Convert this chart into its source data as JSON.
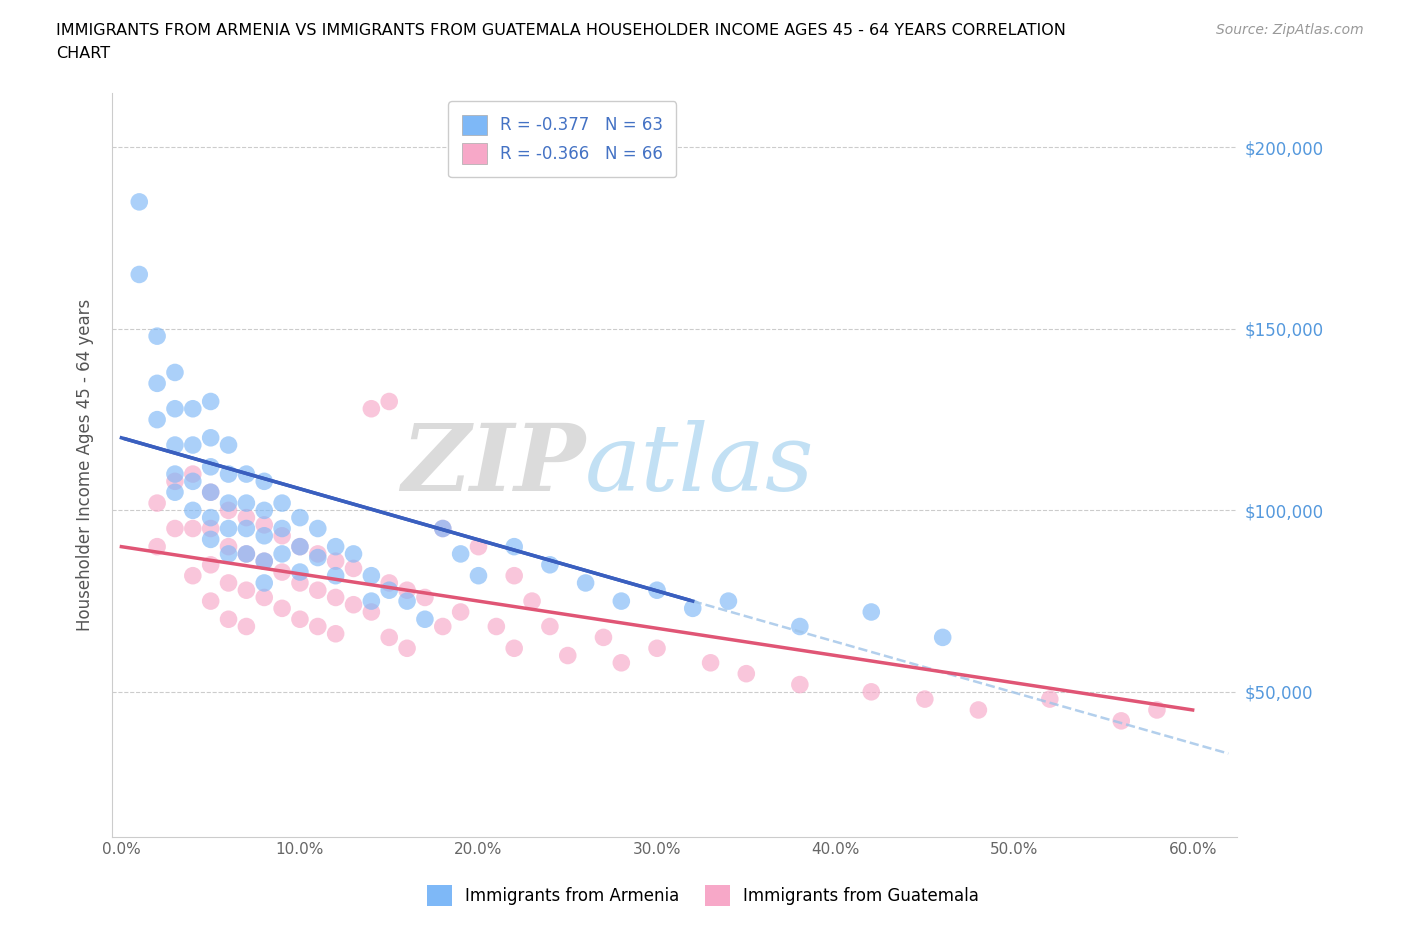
{
  "title": "IMMIGRANTS FROM ARMENIA VS IMMIGRANTS FROM GUATEMALA HOUSEHOLDER INCOME AGES 45 - 64 YEARS CORRELATION\nCHART",
  "source_text": "Source: ZipAtlas.com",
  "ylabel": "Householder Income Ages 45 - 64 years",
  "armenia_label": "Immigrants from Armenia",
  "guatemala_label": "Immigrants from Guatemala",
  "armenia_color": "#7eb8f7",
  "guatemala_color": "#f7a8c8",
  "armenia_line_color": "#3a5fbf",
  "guatemala_line_color": "#e05575",
  "dashed_color": "#a0c4e8",
  "armenia_R": -0.377,
  "armenia_N": 63,
  "guatemala_R": -0.366,
  "guatemala_N": 66,
  "xlim": [
    -0.005,
    0.625
  ],
  "ylim": [
    10000,
    215000
  ],
  "xticks": [
    0.0,
    0.1,
    0.2,
    0.3,
    0.4,
    0.5,
    0.6
  ],
  "yticks": [
    50000,
    100000,
    150000,
    200000
  ],
  "ytick_labels": [
    "$50,000",
    "$100,000",
    "$150,000",
    "$200,000"
  ],
  "xtick_labels": [
    "0.0%",
    "10.0%",
    "20.0%",
    "30.0%",
    "40.0%",
    "50.0%",
    "60.0%"
  ],
  "watermark_zip": "ZIP",
  "watermark_atlas": "atlas",
  "armenia_line_x0": 0.0,
  "armenia_line_y0": 120000,
  "armenia_line_x1": 0.32,
  "armenia_line_y1": 75000,
  "armenia_line_end": 0.32,
  "dashed_line_x0": 0.32,
  "dashed_line_y0": 75000,
  "dashed_line_x1": 0.62,
  "dashed_line_y1": 33000,
  "guatemala_line_x0": 0.0,
  "guatemala_line_y0": 90000,
  "guatemala_line_x1": 0.6,
  "guatemala_line_y1": 45000,
  "armenia_scatter_x": [
    0.01,
    0.01,
    0.02,
    0.02,
    0.02,
    0.03,
    0.03,
    0.03,
    0.03,
    0.03,
    0.04,
    0.04,
    0.04,
    0.04,
    0.05,
    0.05,
    0.05,
    0.05,
    0.05,
    0.05,
    0.06,
    0.06,
    0.06,
    0.06,
    0.06,
    0.07,
    0.07,
    0.07,
    0.07,
    0.08,
    0.08,
    0.08,
    0.08,
    0.08,
    0.09,
    0.09,
    0.09,
    0.1,
    0.1,
    0.1,
    0.11,
    0.11,
    0.12,
    0.12,
    0.13,
    0.14,
    0.14,
    0.15,
    0.16,
    0.17,
    0.18,
    0.19,
    0.2,
    0.22,
    0.24,
    0.26,
    0.28,
    0.3,
    0.32,
    0.34,
    0.38,
    0.42,
    0.46
  ],
  "armenia_scatter_y": [
    185000,
    165000,
    148000,
    135000,
    125000,
    138000,
    128000,
    118000,
    110000,
    105000,
    128000,
    118000,
    108000,
    100000,
    130000,
    120000,
    112000,
    105000,
    98000,
    92000,
    118000,
    110000,
    102000,
    95000,
    88000,
    110000,
    102000,
    95000,
    88000,
    108000,
    100000,
    93000,
    86000,
    80000,
    102000,
    95000,
    88000,
    98000,
    90000,
    83000,
    95000,
    87000,
    90000,
    82000,
    88000,
    82000,
    75000,
    78000,
    75000,
    70000,
    95000,
    88000,
    82000,
    90000,
    85000,
    80000,
    75000,
    78000,
    73000,
    75000,
    68000,
    72000,
    65000
  ],
  "guatemala_scatter_x": [
    0.02,
    0.02,
    0.03,
    0.03,
    0.04,
    0.04,
    0.04,
    0.05,
    0.05,
    0.05,
    0.05,
    0.06,
    0.06,
    0.06,
    0.06,
    0.07,
    0.07,
    0.07,
    0.07,
    0.08,
    0.08,
    0.08,
    0.09,
    0.09,
    0.09,
    0.1,
    0.1,
    0.1,
    0.11,
    0.11,
    0.11,
    0.12,
    0.12,
    0.12,
    0.13,
    0.13,
    0.14,
    0.14,
    0.15,
    0.15,
    0.15,
    0.16,
    0.16,
    0.17,
    0.18,
    0.18,
    0.19,
    0.2,
    0.21,
    0.22,
    0.22,
    0.23,
    0.24,
    0.25,
    0.27,
    0.28,
    0.3,
    0.33,
    0.35,
    0.38,
    0.42,
    0.45,
    0.48,
    0.52,
    0.56,
    0.58
  ],
  "guatemala_scatter_y": [
    102000,
    90000,
    108000,
    95000,
    110000,
    95000,
    82000,
    105000,
    95000,
    85000,
    75000,
    100000,
    90000,
    80000,
    70000,
    98000,
    88000,
    78000,
    68000,
    96000,
    86000,
    76000,
    93000,
    83000,
    73000,
    90000,
    80000,
    70000,
    88000,
    78000,
    68000,
    86000,
    76000,
    66000,
    84000,
    74000,
    128000,
    72000,
    130000,
    80000,
    65000,
    78000,
    62000,
    76000,
    95000,
    68000,
    72000,
    90000,
    68000,
    82000,
    62000,
    75000,
    68000,
    60000,
    65000,
    58000,
    62000,
    58000,
    55000,
    52000,
    50000,
    48000,
    45000,
    48000,
    42000,
    45000
  ]
}
